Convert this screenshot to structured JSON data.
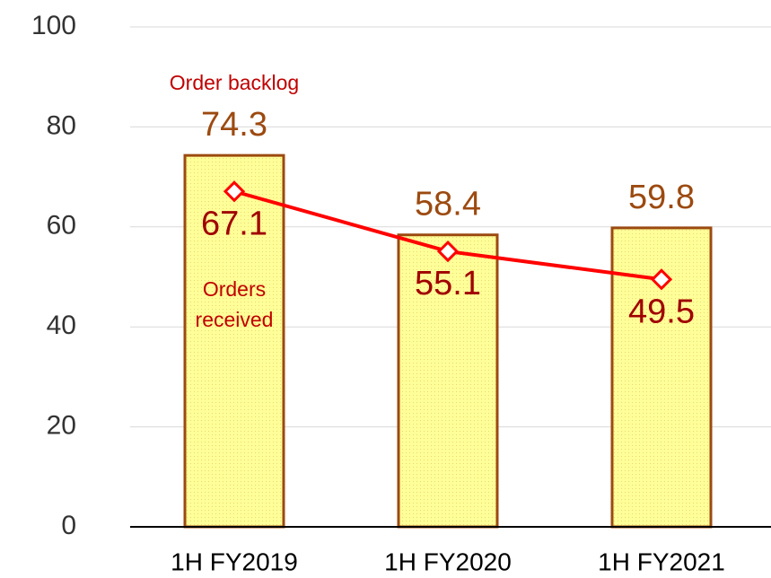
{
  "chart_data": {
    "type": "bar",
    "categories": [
      "1H FY2019",
      "1H FY2020",
      "1H FY2021"
    ],
    "series": [
      {
        "type": "bar",
        "color": "#ffff99",
        "values": [
          74.3,
          58.4,
          59.8
        ]
      },
      {
        "type": "line",
        "color": "#ff0000",
        "values": [
          67.1,
          55.1,
          49.5
        ]
      }
    ],
    "annotations": [
      "Order backlog",
      "Orders received"
    ],
    "ylim": [
      0,
      100
    ],
    "yticks": [
      0,
      20,
      40,
      60,
      80,
      100
    ],
    "grid": true
  }
}
